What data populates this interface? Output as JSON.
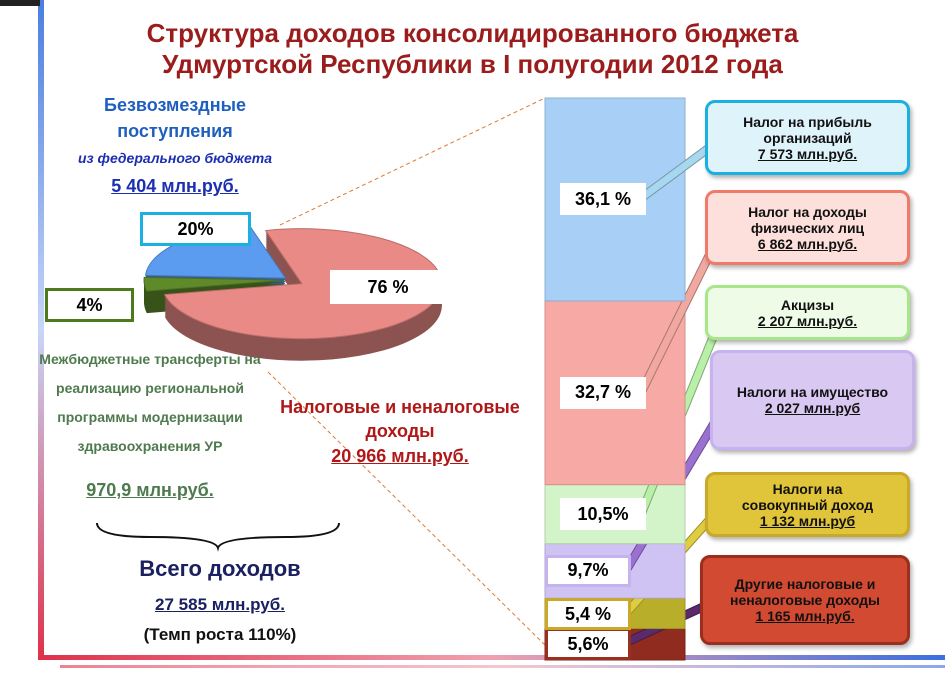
{
  "title": "Структура доходов консолидированного бюджета Удмуртской Республики в I полугодии 2012 года",
  "chart_data": [
    {
      "type": "pie",
      "categories": [
        "Безвозмездные поступления",
        "Межбюджетные трансферты на реализацию региональной программы модернизации здравоохранения УР",
        "Налоговые и неналоговые доходы"
      ],
      "annotations": [
        "из федерального бюджета",
        null,
        null
      ],
      "amounts": [
        "5 404 млн.руб.",
        "970,9 млн.руб.",
        "20 966 млн.руб."
      ],
      "values": [
        20,
        4,
        76
      ],
      "value_labels": [
        "20%",
        "4%",
        "76 %"
      ],
      "colors": [
        "#5b9bf0",
        "#5e8a2a",
        "#e98a86"
      ]
    },
    {
      "type": "stacked-bar",
      "categories": [
        "Другие налоговые и неналоговые доходы",
        "Налоги на совокупный доход",
        "Налоги на имущество",
        "Акцизы",
        "Налог на доходы физических лиц",
        "Налог на прибыль организаций"
      ],
      "amounts": [
        "1 165 млн.руб.",
        "1 132 млн.руб",
        "2 027 млн.руб",
        "2 207 млн.руб.",
        "6 862 млн.руб.",
        "7 573 млн.руб."
      ],
      "values": [
        5.6,
        5.4,
        9.7,
        10.5,
        32.7,
        36.1
      ],
      "value_labels": [
        "5,6%",
        "5,4 %",
        "9,7%",
        "10,5%",
        "32,7 %",
        "36,1 %"
      ],
      "colors": [
        "#8f2b1f",
        "#b8ae2a",
        "#cfc3f3",
        "#d3f3c8",
        "#f7aaa5",
        "#a8cff5"
      ]
    }
  ],
  "total": {
    "label": "Всего доходов",
    "amount": "27 585 млн.руб.",
    "growth": "(Темп роста 110%)"
  }
}
